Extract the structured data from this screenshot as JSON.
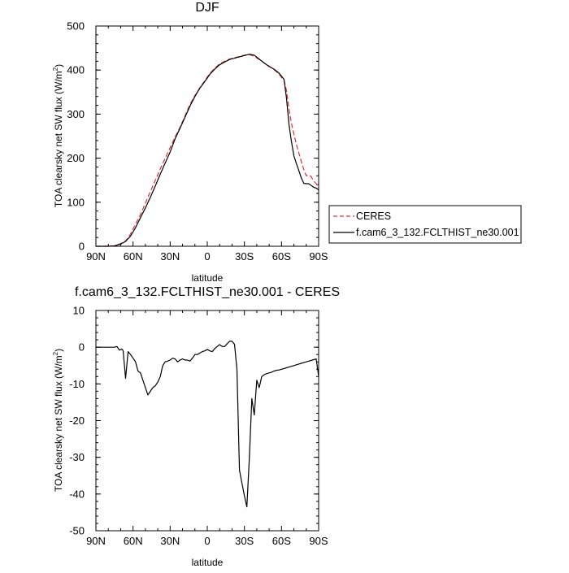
{
  "chart_data": [
    {
      "type": "line",
      "title": "DJF",
      "xlabel": "latitude",
      "ylabel": "TOA clearsky net SW flux (W/m",
      "ylabel_sup": "2",
      "ylabel_close": ")",
      "xlim": [
        90,
        -90
      ],
      "ylim": [
        0,
        500
      ],
      "x_ticks": [
        90,
        60,
        30,
        0,
        -30,
        -60,
        -90
      ],
      "x_tick_labels": [
        "90N",
        "60N",
        "30N",
        "0",
        "30S",
        "60S",
        "90S"
      ],
      "y_ticks": [
        0,
        100,
        200,
        300,
        400,
        500
      ],
      "y_tick_labels": [
        "0",
        "100",
        "200",
        "300",
        "400",
        "500"
      ],
      "grid": false,
      "legend_position": "right-bottom",
      "series": [
        {
          "name": "CERES",
          "color": "#e03030",
          "dash": "dashed",
          "x": [
            90,
            80,
            75,
            70,
            66,
            62,
            58,
            54,
            50,
            46,
            42,
            38,
            34,
            30,
            26,
            22,
            18,
            14,
            10,
            6,
            2,
            -2,
            -6,
            -10,
            -14,
            -18,
            -22,
            -26,
            -30,
            -34,
            -38,
            -42,
            -46,
            -50,
            -54,
            -58,
            -62,
            -64,
            -66,
            -68,
            -70,
            -72,
            -74,
            -76,
            -78,
            -80,
            -82,
            -84,
            -86,
            -88,
            -90
          ],
          "y": [
            0,
            0,
            1,
            6,
            12,
            28,
            50,
            72,
            98,
            124,
            150,
            176,
            200,
            224,
            248,
            270,
            296,
            322,
            342,
            360,
            376,
            392,
            404,
            414,
            420,
            425,
            428,
            431,
            434,
            435,
            431,
            424,
            416,
            409,
            401,
            391,
            376,
            354,
            312,
            280,
            254,
            232,
            212,
            192,
            175,
            160,
            162,
            158,
            148,
            142,
            136
          ]
        },
        {
          "name": "f.cam6_3_132.FCLTHIST_ne30.001",
          "color": "#000000",
          "dash": "solid",
          "x": [
            90,
            80,
            75,
            70,
            66,
            62,
            58,
            54,
            50,
            46,
            42,
            38,
            34,
            30,
            26,
            22,
            18,
            14,
            10,
            6,
            2,
            -2,
            -6,
            -10,
            -14,
            -18,
            -22,
            -26,
            -30,
            -34,
            -38,
            -42,
            -46,
            -50,
            -54,
            -58,
            -62,
            -64,
            -66,
            -68,
            -70,
            -72,
            -74,
            -76,
            -78,
            -80,
            -82,
            -84,
            -86,
            -88,
            -90
          ],
          "y": [
            0,
            0,
            1,
            5,
            11,
            23,
            42,
            65,
            87,
            111,
            137,
            164,
            189,
            214,
            244,
            268,
            293,
            318,
            340,
            359,
            374,
            390,
            402,
            412,
            418,
            424,
            427,
            430,
            433,
            436,
            434,
            425,
            416,
            408,
            402,
            393,
            379,
            337,
            277,
            238,
            205,
            188,
            172,
            155,
            143,
            142,
            142,
            138,
            134,
            132,
            128
          ]
        }
      ]
    },
    {
      "type": "line",
      "title": "f.cam6_3_132.FCLTHIST_ne30.001 - CERES",
      "xlabel": "latitude",
      "ylabel": "TOA clearsky net SW flux (W/m",
      "ylabel_sup": "2",
      "ylabel_close": ")",
      "xlim": [
        90,
        -90
      ],
      "ylim": [
        -50,
        10
      ],
      "x_ticks": [
        90,
        60,
        30,
        0,
        -30,
        -60,
        -90
      ],
      "x_tick_labels": [
        "90N",
        "60N",
        "30N",
        "0",
        "30S",
        "60S",
        "90S"
      ],
      "y_ticks": [
        -50,
        -40,
        -30,
        -20,
        -10,
        0,
        10
      ],
      "y_tick_labels": [
        "-50",
        "-40",
        "-30",
        "-20",
        "-10",
        "0",
        "10"
      ],
      "grid": false,
      "series": [
        {
          "name": "",
          "color": "#000000",
          "dash": "solid",
          "x": [
            90,
            80,
            75,
            73,
            71,
            69,
            68,
            66,
            64,
            62,
            60,
            58,
            56,
            54,
            52,
            50,
            48,
            46,
            44,
            42,
            40,
            38,
            36,
            34,
            32,
            30,
            28,
            26,
            24,
            22,
            20,
            18,
            16,
            14,
            12,
            10,
            8,
            6,
            4,
            2,
            0,
            -2,
            -4,
            -6,
            -8,
            -10,
            -12,
            -14,
            -16,
            -18,
            -20,
            -22,
            -24,
            -26,
            -28,
            -30,
            -32,
            -34,
            -36,
            -38,
            -40,
            -42,
            -44,
            -46,
            -48,
            -50,
            -52,
            -54,
            -56,
            -58,
            -60,
            -62,
            -64,
            -66,
            -68,
            -70,
            -72,
            -74,
            -76,
            -78,
            -80,
            -82,
            -84,
            -86,
            -88,
            -90
          ],
          "y": [
            0,
            0,
            0,
            0.2,
            -0.8,
            -0.5,
            -1.0,
            -8.5,
            -1.2,
            -2.0,
            -3.0,
            -4.0,
            -6.5,
            -7.0,
            -9.0,
            -11.0,
            -13.0,
            -12.0,
            -11.0,
            -10.5,
            -9.5,
            -8.0,
            -5.0,
            -4.0,
            -3.8,
            -3.5,
            -3.0,
            -3.2,
            -4.0,
            -3.5,
            -3.2,
            -3.5,
            -3.5,
            -3.8,
            -3.0,
            -2.0,
            -2.0,
            -1.6,
            -1.2,
            -1.0,
            -0.6,
            -1.0,
            -1.2,
            -0.4,
            0.2,
            0.7,
            0.2,
            0.2,
            0.9,
            1.6,
            1.6,
            0.8,
            -6.0,
            -33.5,
            -37.0,
            -40.5,
            -43.5,
            -30.0,
            -14.0,
            -18.5,
            -9.0,
            -11.0,
            -8.0,
            -7.5,
            -7.2,
            -7.0,
            -6.8,
            -6.5,
            -6.3,
            -6.2,
            -6.0,
            -5.8,
            -5.6,
            -5.4,
            -5.2,
            -5.0,
            -4.8,
            -4.6,
            -4.4,
            -4.2,
            -4.0,
            -3.8,
            -3.6,
            -3.4,
            -3.2,
            -8.0
          ]
        }
      ]
    }
  ]
}
